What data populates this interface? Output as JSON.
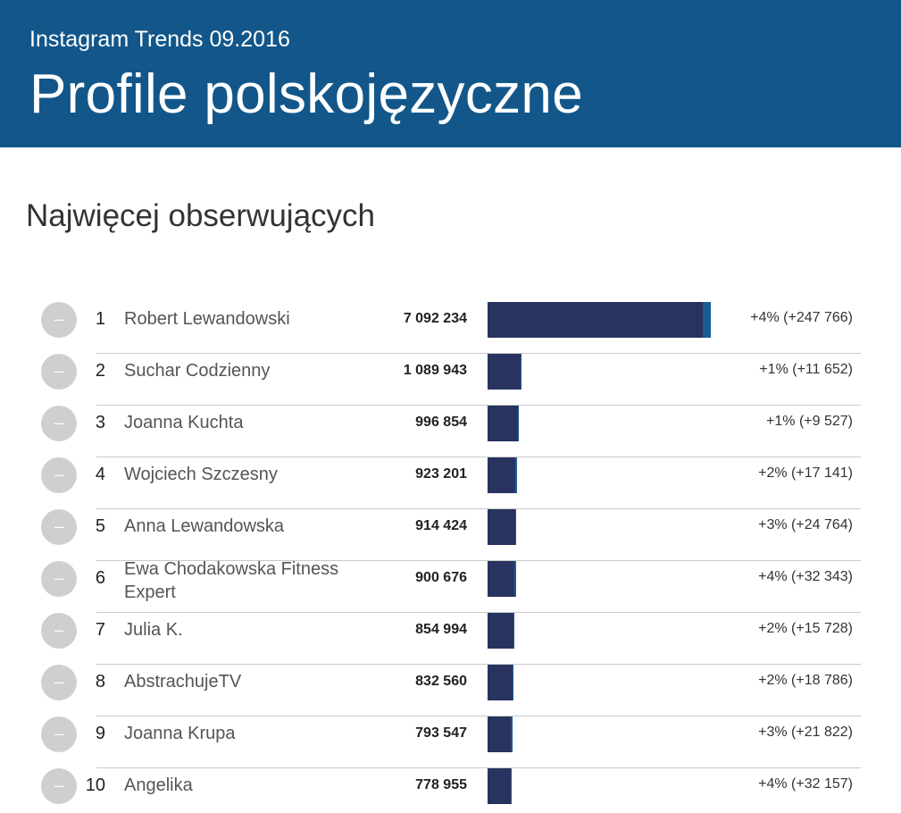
{
  "header": {
    "subtitle": "Instagram Trends 09.2016",
    "title": "Profile polskojęzyczne"
  },
  "section_title": "Najwięcej obserwujących",
  "colors": {
    "header_bg": "#13578a",
    "bar": "#28345f",
    "bar_gain": "#1a5c94",
    "badge": "#cfcfcf"
  },
  "chart_data": {
    "type": "bar",
    "orientation": "horizontal",
    "title": "Najwięcej obserwujących",
    "xlim": [
      0,
      7092234
    ],
    "rows": [
      {
        "badge": "–",
        "rank": "1",
        "name": "Robert Lewandowski",
        "value": 7092234,
        "value_label": "7 092 234",
        "gain": 247766,
        "change_label": "+4% (+247 766)"
      },
      {
        "badge": "–",
        "rank": "2",
        "name": "Suchar Codzienny",
        "value": 1089943,
        "value_label": "1 089 943",
        "gain": 11652,
        "change_label": "+1% (+11 652)"
      },
      {
        "badge": "–",
        "rank": "3",
        "name": "Joanna Kuchta",
        "value": 996854,
        "value_label": "996 854",
        "gain": 9527,
        "change_label": "+1% (+9 527)"
      },
      {
        "badge": "–",
        "rank": "4",
        "name": "Wojciech Szczesny",
        "value": 923201,
        "value_label": "923 201",
        "gain": 17141,
        "change_label": "+2% (+17 141)"
      },
      {
        "badge": "–",
        "rank": "5",
        "name": "Anna Lewandowska",
        "value": 914424,
        "value_label": "914 424",
        "gain": 24764,
        "change_label": "+3% (+24 764)"
      },
      {
        "badge": "–",
        "rank": "6",
        "name": "Ewa Chodakowska Fitness Expert",
        "value": 900676,
        "value_label": "900 676",
        "gain": 32343,
        "change_label": "+4% (+32 343)"
      },
      {
        "badge": "–",
        "rank": "7",
        "name": "Julia K.",
        "value": 854994,
        "value_label": "854 994",
        "gain": 15728,
        "change_label": "+2% (+15 728)"
      },
      {
        "badge": "–",
        "rank": "8",
        "name": "AbstrachujeTV",
        "value": 832560,
        "value_label": "832 560",
        "gain": 18786,
        "change_label": "+2% (+18 786)"
      },
      {
        "badge": "–",
        "rank": "9",
        "name": "Joanna Krupa",
        "value": 793547,
        "value_label": "793 547",
        "gain": 21822,
        "change_label": "+3% (+21 822)"
      },
      {
        "badge": "–",
        "rank": "10",
        "name": "Angelika",
        "value": 778955,
        "value_label": "778 955",
        "gain": 32157,
        "change_label": "+4% (+32 157)"
      }
    ]
  }
}
